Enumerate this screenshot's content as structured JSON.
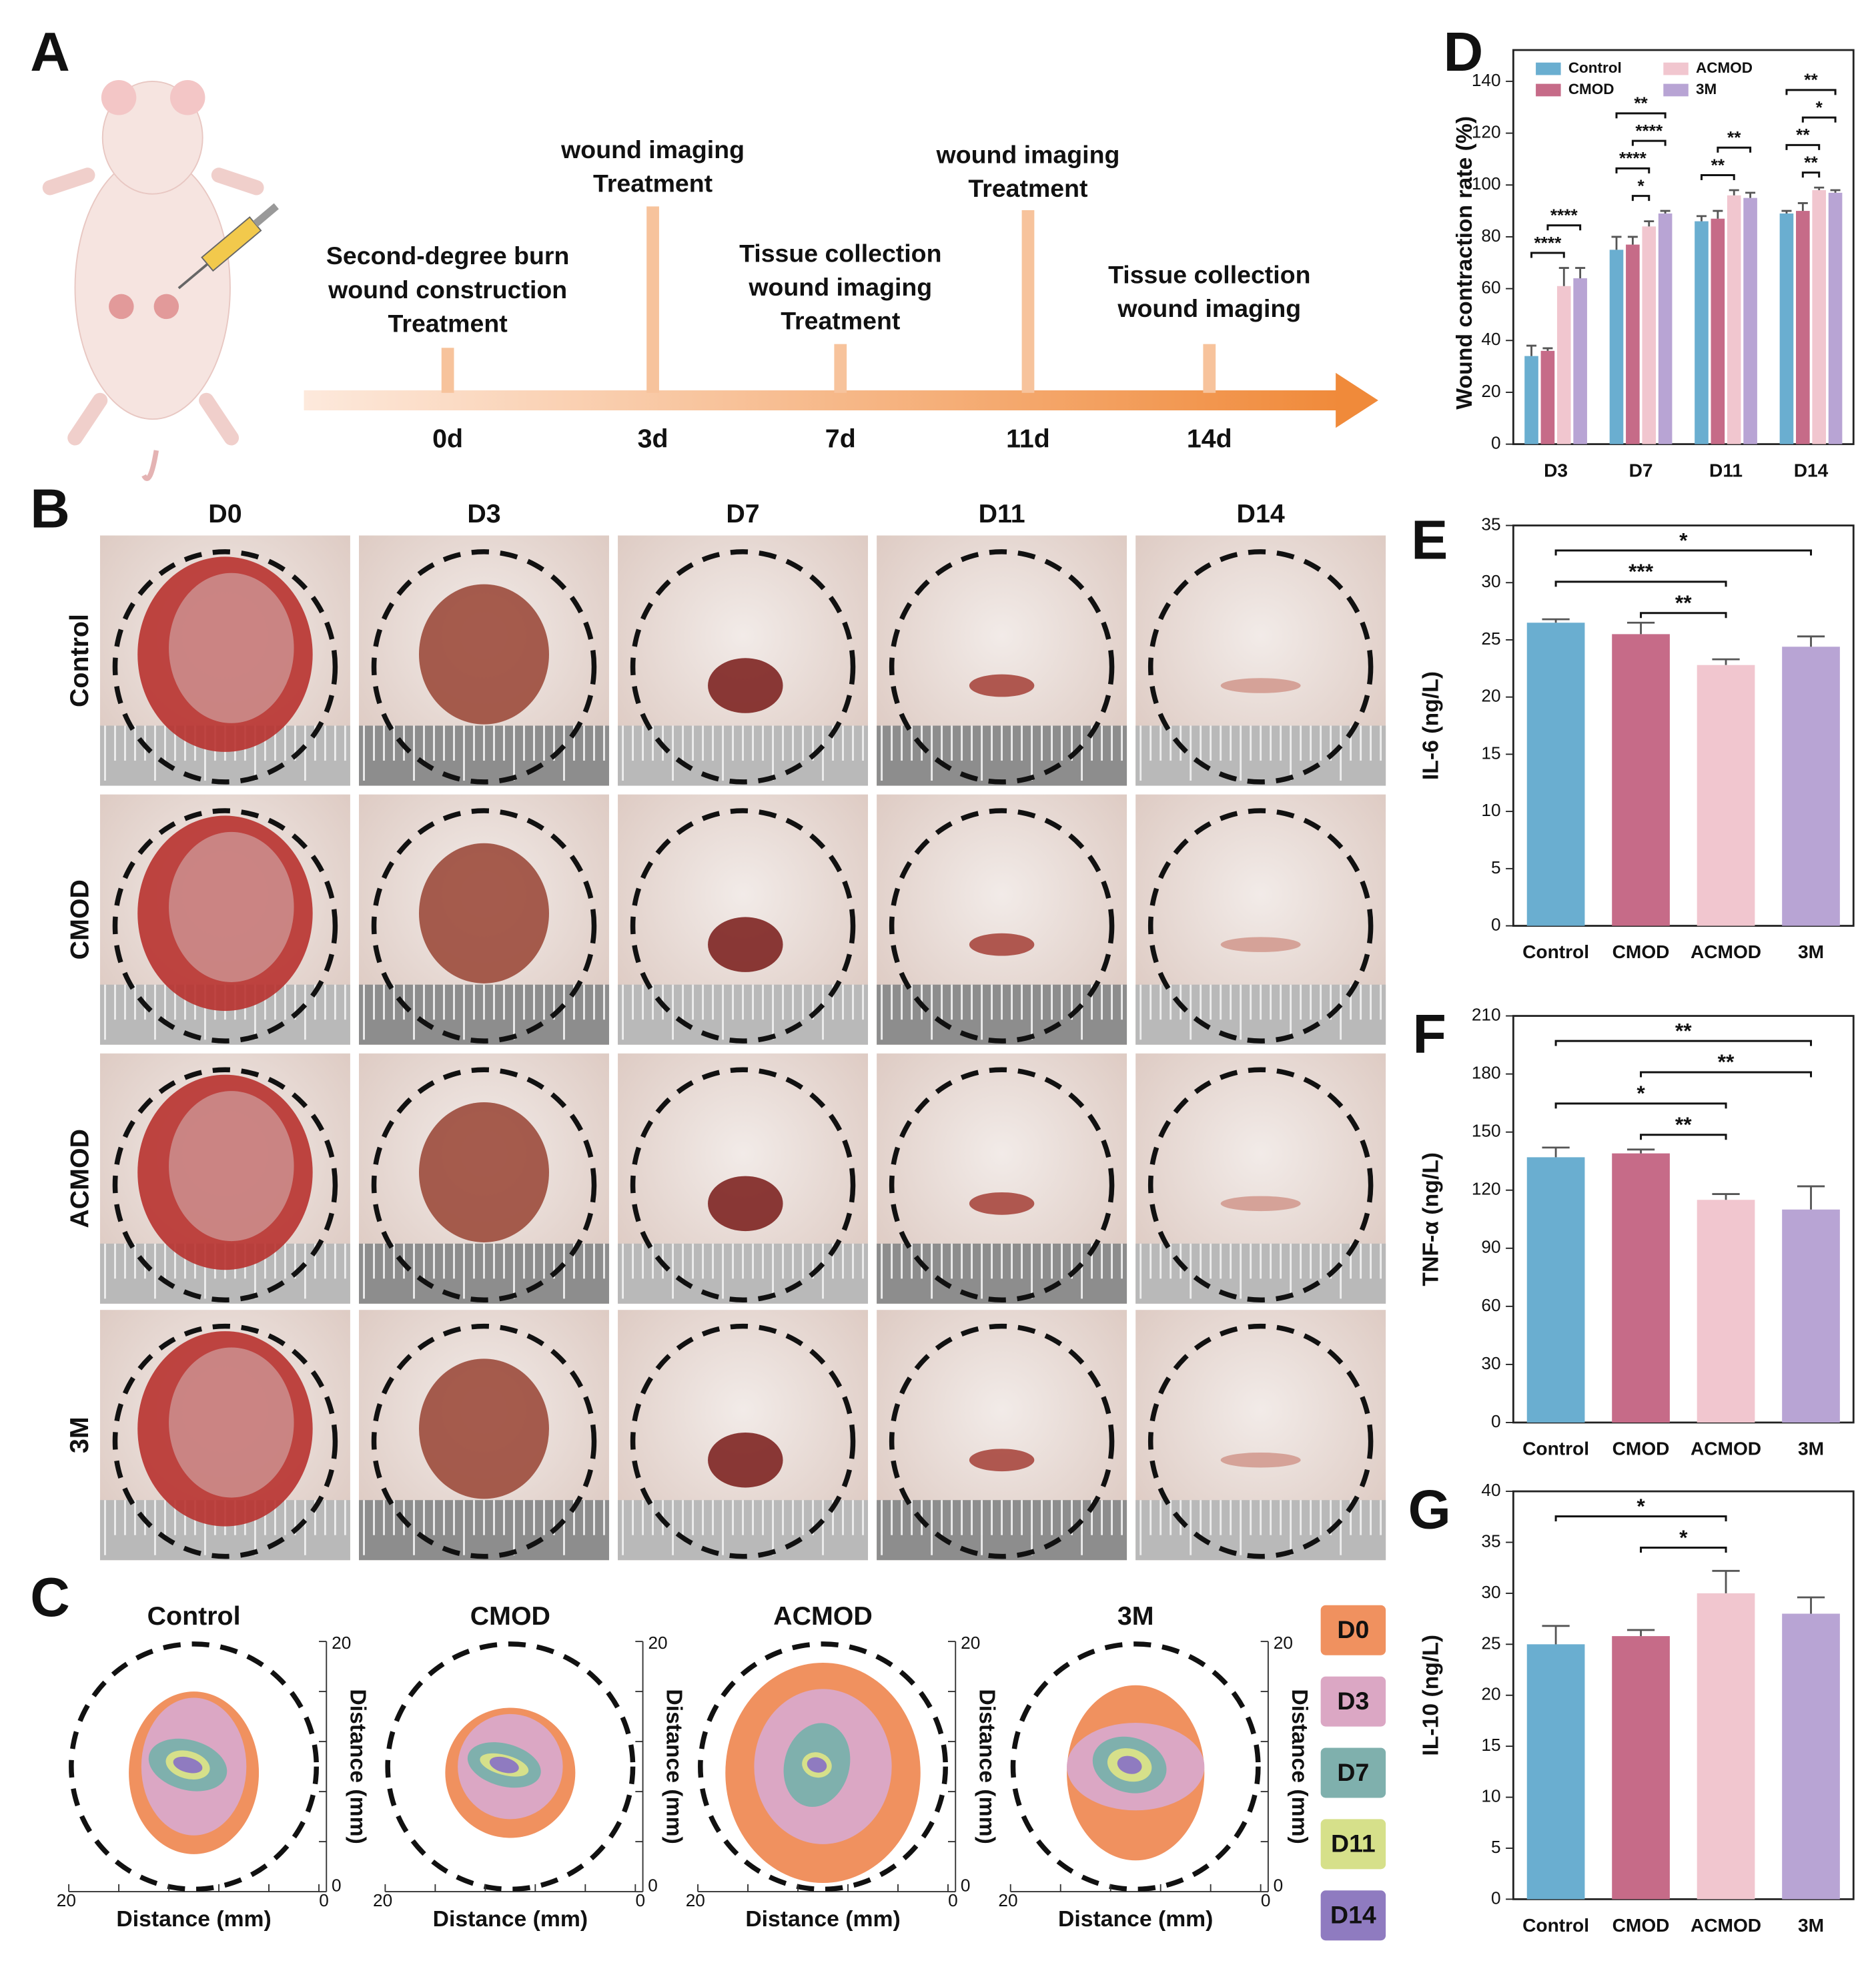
{
  "timeline": {
    "label": "A",
    "events": [
      {
        "day": "0d",
        "lines": [
          "Second-degree burn",
          "wound construction",
          "Treatment"
        ]
      },
      {
        "day": "3d",
        "lines": [
          "wound imaging",
          "Treatment"
        ]
      },
      {
        "day": "7d",
        "lines": [
          "Tissue collection",
          "wound imaging",
          "Treatment"
        ]
      },
      {
        "day": "11d",
        "lines": [
          "wound imaging",
          "Treatment"
        ]
      },
      {
        "day": "14d",
        "lines": [
          "Tissue collection",
          "wound imaging"
        ]
      }
    ]
  },
  "photo_grid": {
    "label": "B",
    "columns": [
      "D0",
      "D3",
      "D7",
      "D11",
      "D14"
    ],
    "rows": [
      "Control",
      "CMOD",
      "ACMOD",
      "3M"
    ]
  },
  "contour_maps": {
    "label": "C",
    "titles": [
      "Control",
      "CMOD",
      "ACMOD",
      "3M"
    ],
    "xlabel": "Distance (mm)",
    "ylabel": "Distance (mm)",
    "xlim": [
      20,
      0
    ],
    "ylim": [
      0,
      20
    ],
    "legend": [
      {
        "name": "D0",
        "color": "#f0915f"
      },
      {
        "name": "D3",
        "color": "#dba7c4"
      },
      {
        "name": "D7",
        "color": "#7fb0ad"
      },
      {
        "name": "D11",
        "color": "#d6e08a"
      },
      {
        "name": "D14",
        "color": "#8f7bc0"
      }
    ]
  },
  "chart_data": [
    {
      "type": "bar",
      "label": "D",
      "ylabel": "Wound contraction rate (%)",
      "categories": [
        "D3",
        "D7",
        "D11",
        "D14"
      ],
      "series": [
        {
          "name": "Control",
          "color": "#6aaed0",
          "values": [
            34,
            75,
            86,
            89
          ],
          "errors": [
            4,
            5,
            2,
            1
          ]
        },
        {
          "name": "CMOD",
          "color": "#c66b88",
          "values": [
            36,
            77,
            87,
            90
          ],
          "errors": [
            1,
            3,
            3,
            3
          ]
        },
        {
          "name": "ACMOD",
          "color": "#f1c6cf",
          "values": [
            61,
            84,
            96,
            98
          ],
          "errors": [
            7,
            2,
            2,
            1
          ]
        },
        {
          "name": "3M",
          "color": "#b8a4d4",
          "values": [
            64,
            89,
            95,
            97
          ],
          "errors": [
            4,
            1,
            2,
            1
          ]
        }
      ],
      "ylim": [
        0,
        140
      ],
      "yticks": [
        0,
        20,
        40,
        60,
        80,
        100,
        120,
        140
      ],
      "annotations": [
        {
          "label": "****",
          "category": "D3",
          "pair": [
            "Control",
            "ACMOD"
          ]
        },
        {
          "label": "****",
          "category": "D3",
          "pair": [
            "CMOD",
            "3M"
          ]
        },
        {
          "label": "*",
          "category": "D7",
          "pair": [
            "CMOD",
            "ACMOD"
          ]
        },
        {
          "label": "****",
          "category": "D7",
          "pair": [
            "Control",
            "ACMOD"
          ]
        },
        {
          "label": "****",
          "category": "D7",
          "pair": [
            "CMOD",
            "3M"
          ]
        },
        {
          "label": "**",
          "category": "D7",
          "pair": [
            "Control",
            "3M"
          ]
        },
        {
          "label": "**",
          "category": "D11",
          "pair": [
            "Control",
            "ACMOD"
          ]
        },
        {
          "label": "**",
          "category": "D11",
          "pair": [
            "CMOD",
            "3M"
          ]
        },
        {
          "label": "**",
          "category": "D14",
          "pair": [
            "CMOD",
            "ACMOD"
          ]
        },
        {
          "label": "**",
          "category": "D14",
          "pair": [
            "Control",
            "ACMOD"
          ]
        },
        {
          "label": "*",
          "category": "D14",
          "pair": [
            "CMOD",
            "3M"
          ]
        },
        {
          "label": "**",
          "category": "D14",
          "pair": [
            "Control",
            "3M"
          ]
        }
      ]
    },
    {
      "type": "bar",
      "label": "E",
      "ylabel": "IL-6 (ng/L)",
      "categories": [
        "Control",
        "CMOD",
        "ACMOD",
        "3M"
      ],
      "values": [
        26.5,
        25.5,
        22.8,
        24.4
      ],
      "errors": [
        0.3,
        1.0,
        0.5,
        0.9
      ],
      "colors": [
        "#6aaed0",
        "#c66b88",
        "#f1c6cf",
        "#b8a4d4"
      ],
      "ylim": [
        0,
        35
      ],
      "yticks": [
        0,
        5,
        10,
        15,
        20,
        25,
        30,
        35
      ],
      "annotations": [
        {
          "label": "*",
          "pair": [
            "Control",
            "3M"
          ]
        },
        {
          "label": "***",
          "pair": [
            "Control",
            "ACMOD"
          ]
        },
        {
          "label": "**",
          "pair": [
            "CMOD",
            "ACMOD"
          ]
        }
      ]
    },
    {
      "type": "bar",
      "label": "F",
      "ylabel": "TNF-α (ng/L)",
      "categories": [
        "Control",
        "CMOD",
        "ACMOD",
        "3M"
      ],
      "values": [
        137,
        139,
        115,
        110
      ],
      "errors": [
        5,
        2,
        3,
        12
      ],
      "colors": [
        "#6aaed0",
        "#c66b88",
        "#f1c6cf",
        "#b8a4d4"
      ],
      "ylim": [
        0,
        210
      ],
      "yticks": [
        0,
        30,
        60,
        90,
        120,
        150,
        180,
        210
      ],
      "annotations": [
        {
          "label": "**",
          "pair": [
            "Control",
            "3M"
          ]
        },
        {
          "label": "**",
          "pair": [
            "CMOD",
            "3M"
          ]
        },
        {
          "label": "*",
          "pair": [
            "Control",
            "ACMOD"
          ]
        },
        {
          "label": "**",
          "pair": [
            "CMOD",
            "ACMOD"
          ]
        }
      ]
    },
    {
      "type": "bar",
      "label": "G",
      "ylabel": "IL-10 (ng/L)",
      "categories": [
        "Control",
        "CMOD",
        "ACMOD",
        "3M"
      ],
      "values": [
        25,
        25.8,
        30,
        28
      ],
      "errors": [
        1.8,
        0.6,
        2.2,
        1.6
      ],
      "colors": [
        "#6aaed0",
        "#c66b88",
        "#f1c6cf",
        "#b8a4d4"
      ],
      "ylim": [
        0,
        40
      ],
      "yticks": [
        0,
        5,
        10,
        15,
        20,
        25,
        30,
        35,
        40
      ],
      "annotations": [
        {
          "label": "*",
          "pair": [
            "Control",
            "ACMOD"
          ]
        },
        {
          "label": "*",
          "pair": [
            "CMOD",
            "ACMOD"
          ]
        }
      ]
    }
  ]
}
